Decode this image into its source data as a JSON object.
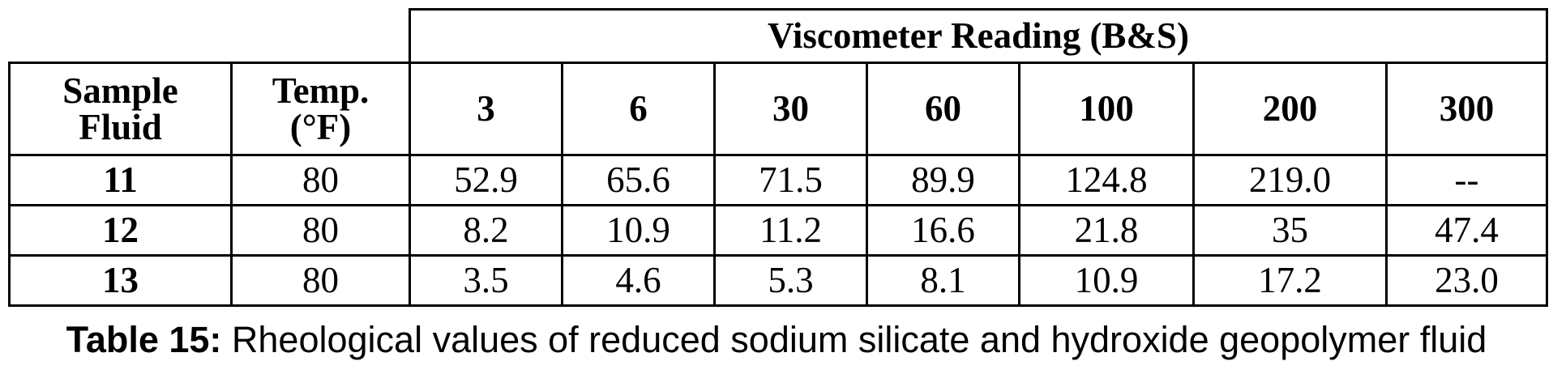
{
  "table": {
    "group_header": "Viscometer Reading (B&S)",
    "sample_header": "Sample Fluid",
    "temp_header": "Temp. (°F)",
    "speeds": [
      "3",
      "6",
      "30",
      "60",
      "100",
      "200",
      "300"
    ],
    "rows": [
      {
        "sample": "11",
        "temp": "80",
        "values": [
          "52.9",
          "65.6",
          "71.5",
          "89.9",
          "124.8",
          "219.0",
          "--"
        ]
      },
      {
        "sample": "12",
        "temp": "80",
        "values": [
          "8.2",
          "10.9",
          "11.2",
          "16.6",
          "21.8",
          "35",
          "47.4"
        ]
      },
      {
        "sample": "13",
        "temp": "80",
        "values": [
          "3.5",
          "4.6",
          "5.3",
          "8.1",
          "10.9",
          "17.2",
          "23.0"
        ]
      }
    ]
  },
  "caption": {
    "label": "Table 15:",
    "text": " Rheological values of reduced sodium silicate and hydroxide geopolymer fluid"
  }
}
